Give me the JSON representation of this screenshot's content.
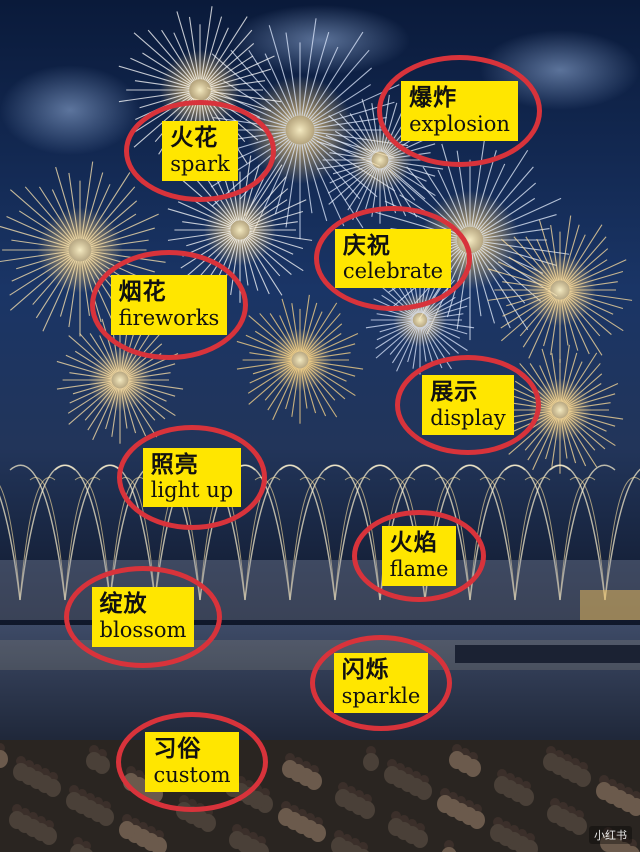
{
  "labels": [
    {
      "id": "spark",
      "zh": "火花",
      "en": "spark"
    },
    {
      "id": "explosion",
      "zh": "爆炸",
      "en": "explosion"
    },
    {
      "id": "celebrate",
      "zh": "庆祝",
      "en": "celebrate"
    },
    {
      "id": "fireworks",
      "zh": "烟花",
      "en": "fireworks"
    },
    {
      "id": "display",
      "zh": "展示",
      "en": "display"
    },
    {
      "id": "light-up",
      "zh": "照亮",
      "en": "light up"
    },
    {
      "id": "flame",
      "zh": "火焰",
      "en": "flame"
    },
    {
      "id": "blossom",
      "zh": "绽放",
      "en": "blossom"
    },
    {
      "id": "sparkle",
      "zh": "闪烁",
      "en": "sparkle"
    },
    {
      "id": "custom",
      "zh": "习俗",
      "en": "custom"
    }
  ],
  "watermark": "小红书",
  "colors": {
    "label_fill": "#ffe600",
    "circle_stroke": "#d8333b",
    "sky": "#0b1630"
  }
}
